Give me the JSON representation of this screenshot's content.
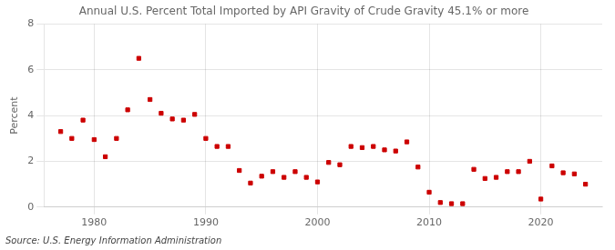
{
  "chart_data": {
    "type": "scatter",
    "title": "Annual U.S. Percent Total Imported by API Gravity of Crude Gravity 45.1% or more",
    "ylabel": "Percent",
    "annotation": "Source: U.S. Energy Information Administration",
    "x": [
      1977,
      1978,
      1979,
      1980,
      1981,
      1982,
      1983,
      1984,
      1985,
      1986,
      1987,
      1988,
      1989,
      1990,
      1991,
      1992,
      1993,
      1994,
      1995,
      1996,
      1997,
      1998,
      1999,
      2000,
      2001,
      2002,
      2003,
      2004,
      2005,
      2006,
      2007,
      2008,
      2009,
      2010,
      2011,
      2012,
      2013,
      2014,
      2015,
      2016,
      2017,
      2018,
      2019,
      2020,
      2021,
      2022,
      2023,
      2024
    ],
    "values": [
      3.3,
      3.0,
      3.8,
      2.95,
      2.2,
      3.0,
      4.25,
      6.5,
      4.7,
      4.1,
      3.85,
      3.8,
      4.05,
      3.0,
      2.65,
      2.65,
      1.6,
      1.05,
      1.35,
      1.55,
      1.3,
      1.55,
      1.3,
      1.1,
      1.95,
      1.85,
      2.65,
      2.6,
      2.65,
      2.5,
      2.45,
      2.85,
      1.75,
      0.65,
      0.2,
      0.15,
      0.15,
      1.65,
      1.25,
      1.3,
      1.55,
      1.55,
      2.0,
      0.35,
      1.8,
      1.5,
      1.45,
      1.0
    ],
    "color": "#cc0000",
    "marker": "square",
    "xlim": [
      1975.5,
      2025.5
    ],
    "xticks": [
      1980,
      1990,
      2000,
      2010,
      2020
    ],
    "ylim": [
      0,
      8
    ],
    "yticks": [
      0,
      2,
      4,
      6,
      8
    ],
    "grid": true
  }
}
